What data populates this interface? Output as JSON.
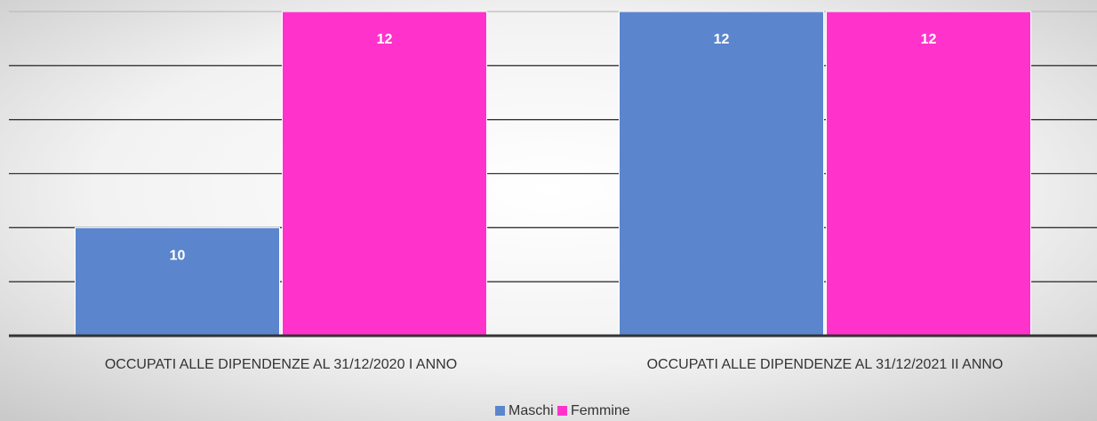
{
  "chart_data": {
    "type": "bar",
    "categories": [
      "OCCUPATI ALLE DIPENDENZE AL 31/12/2020 I ANNO",
      "OCCUPATI ALLE DIPENDENZE AL 31/12/2021 II ANNO"
    ],
    "series": [
      {
        "name": "Maschi",
        "color": "#5b86cd",
        "values": [
          10,
          12
        ]
      },
      {
        "name": "Femmine",
        "color": "#ff33cc",
        "values": [
          12,
          12
        ]
      }
    ],
    "ylim": [
      9,
      12
    ],
    "yticks": [
      9,
      9.5,
      10,
      10.5,
      11,
      11.5,
      12
    ],
    "grid": true,
    "legend": "bottom"
  }
}
